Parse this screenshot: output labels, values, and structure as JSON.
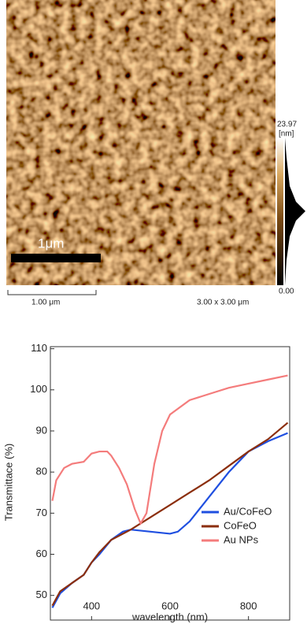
{
  "image": {
    "colorbar_max": "23.97",
    "colorbar_unit": "[nm]",
    "colorbar_min": "0.00",
    "scale_bar": "1μm",
    "scale_label": "1.00 μm",
    "size_label": "3.00 x 3.00 μm"
  },
  "chart_data": {
    "type": "line",
    "x_label": "wavelength (nm)",
    "y_label": "Transmittace (%)",
    "xlim": [
      295,
      905
    ],
    "ylim": [
      44,
      110.5
    ],
    "xticks": [
      400,
      600,
      800
    ],
    "yticks": [
      50,
      60,
      70,
      80,
      90,
      100,
      110
    ],
    "legend": "lower right",
    "series": [
      {
        "name": "Au/CoFeO",
        "color": "#1f4fe0",
        "x": [
          300,
          320,
          350,
          380,
          400,
          420,
          450,
          480,
          500,
          550,
          600,
          620,
          650,
          700,
          750,
          800,
          850,
          900
        ],
        "values": [
          47,
          50.5,
          53,
          55,
          58,
          60,
          63.5,
          65.5,
          66,
          65.5,
          65,
          65.5,
          68,
          74,
          80,
          85,
          87.5,
          89.5
        ]
      },
      {
        "name": "CoFeO",
        "color": "#8b2e0c",
        "x": [
          300,
          320,
          350,
          380,
          400,
          420,
          450,
          480,
          500,
          550,
          600,
          650,
          700,
          750,
          800,
          850,
          900
        ],
        "values": [
          47.5,
          51,
          53,
          55,
          58,
          60.5,
          63.5,
          65,
          66,
          69,
          72,
          75,
          78,
          81.5,
          85,
          88,
          92
        ]
      },
      {
        "name": "Au NPs",
        "color": "#f47c7c",
        "x": [
          300,
          310,
          330,
          350,
          380,
          400,
          420,
          440,
          450,
          470,
          490,
          510,
          525,
          540,
          560,
          580,
          600,
          650,
          700,
          750,
          800,
          850,
          900
        ],
        "values": [
          73,
          78,
          81,
          82,
          82.5,
          84.5,
          85,
          85,
          84,
          81,
          77,
          71,
          67.5,
          70,
          82,
          90,
          94,
          97.5,
          99,
          100.5,
          101.5,
          102.5,
          103.5
        ]
      }
    ]
  }
}
